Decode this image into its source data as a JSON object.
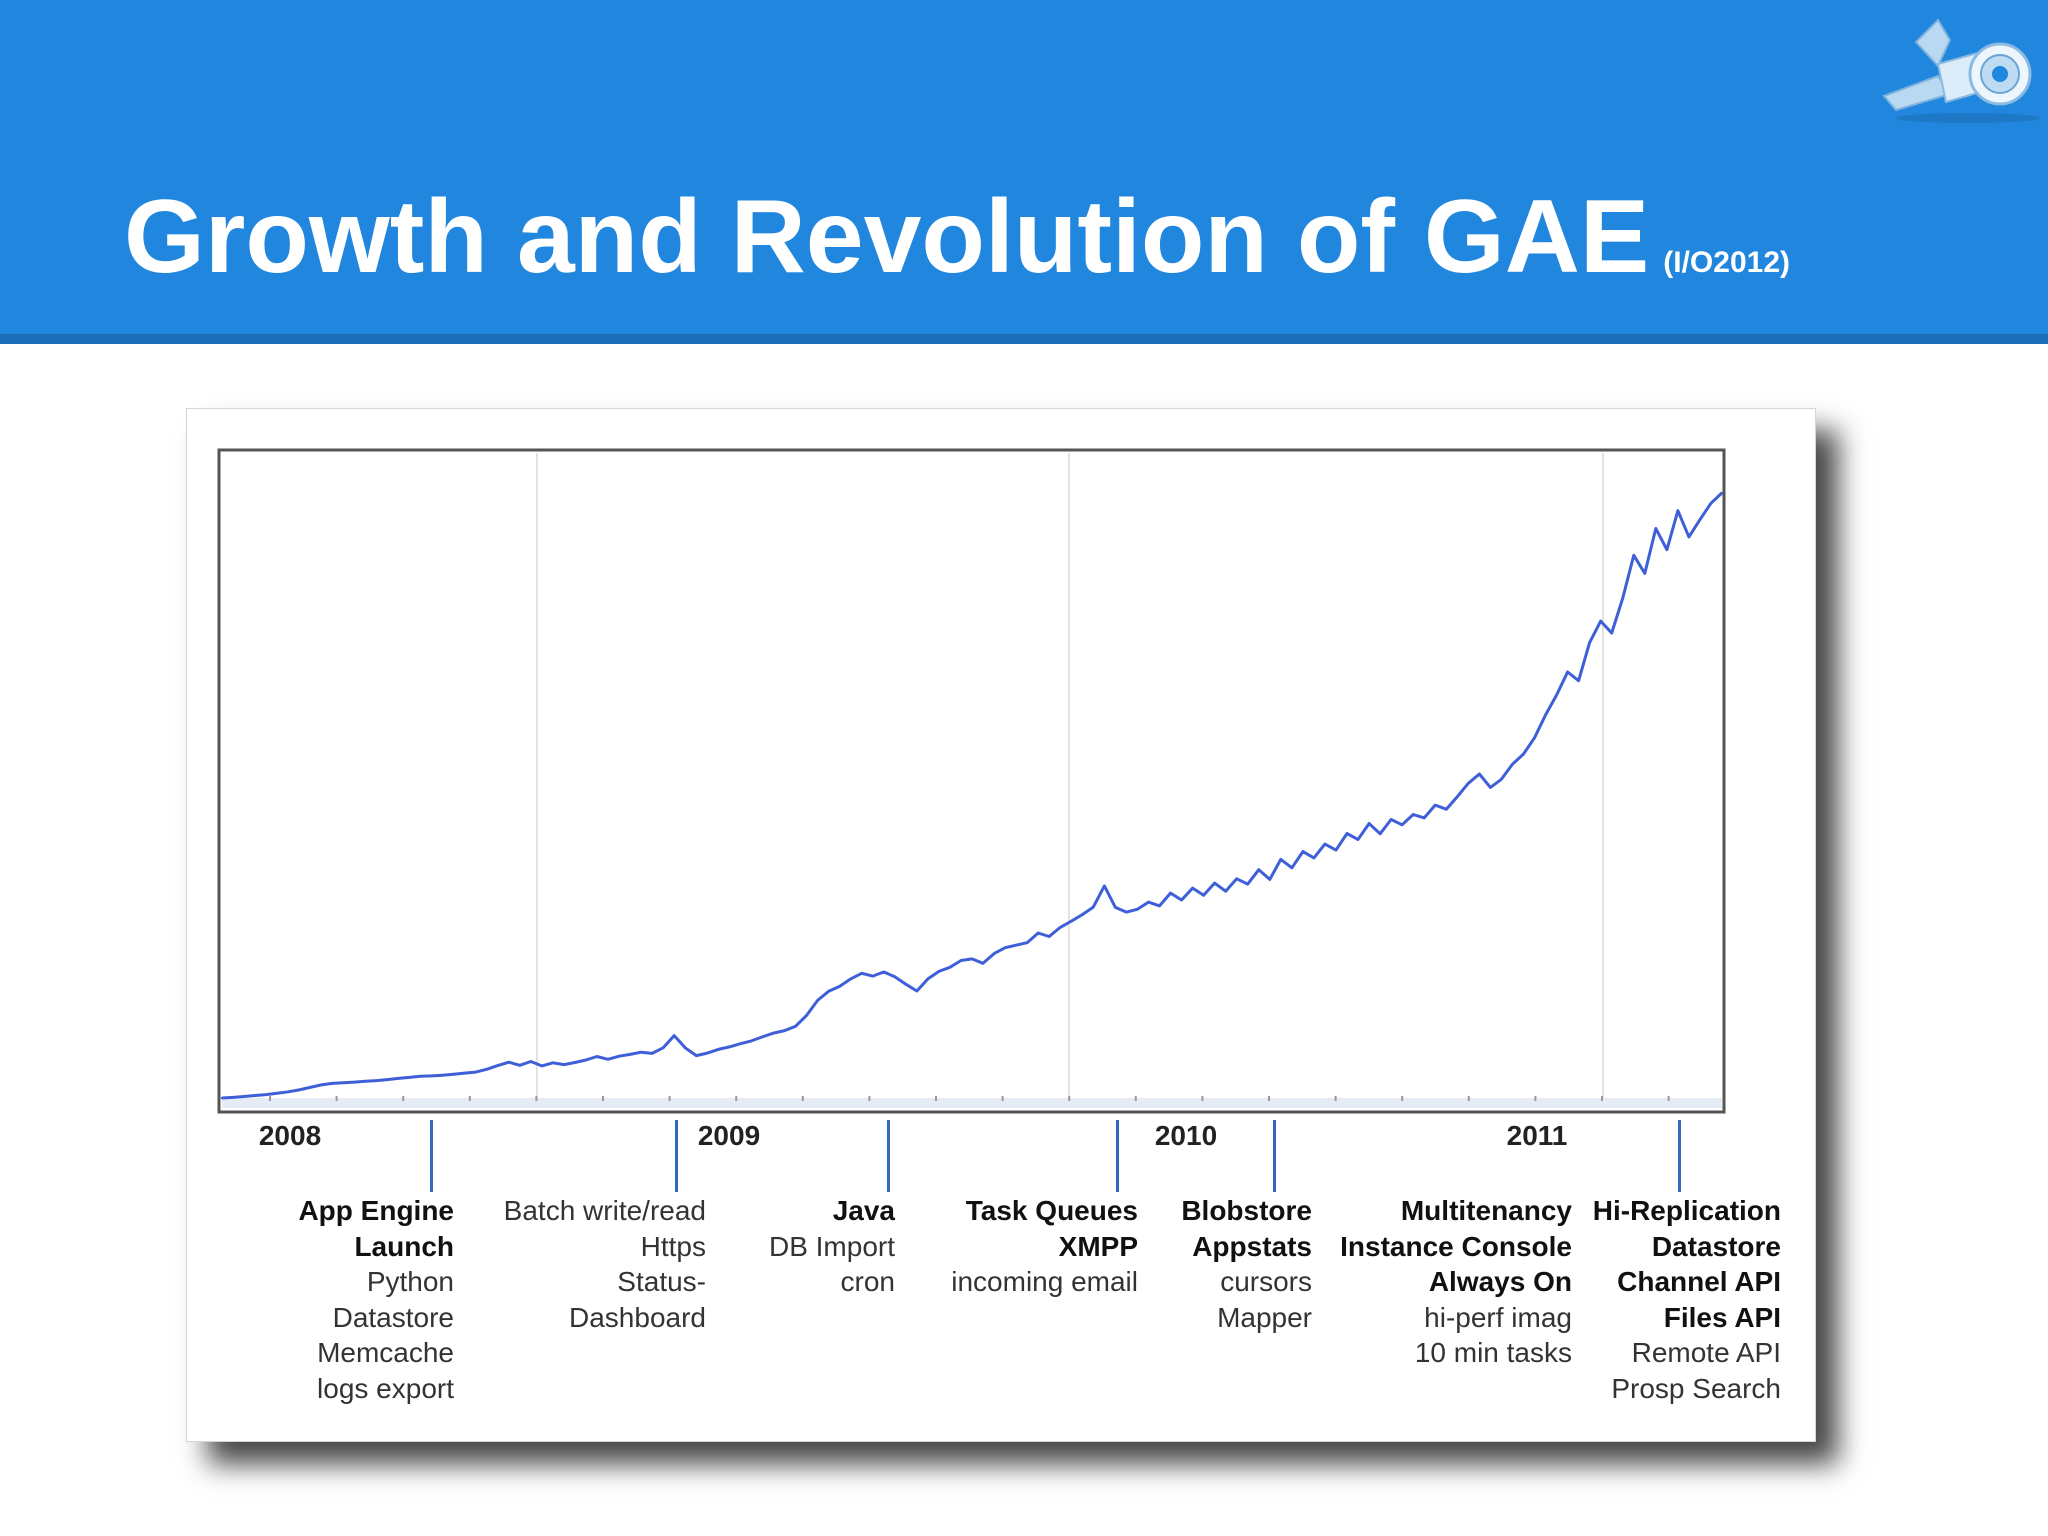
{
  "slide": {
    "title": "Growth and Revolution of GAE",
    "subtitle": "(I/O2012)",
    "logo_icon": "app-engine-logo-icon"
  },
  "colors": {
    "header": "#2186dd",
    "line": "#3f5fd8",
    "event_marker": "#2f6bb8"
  },
  "chart_data": {
    "type": "line",
    "title": "",
    "xlabel": "",
    "ylabel": "",
    "x_ticks": [
      "2008",
      "2009",
      "2010",
      "2011"
    ],
    "grid": true,
    "series": [
      {
        "name": "",
        "values": [
          3.2,
          3.4,
          3.7,
          4.0,
          4.3,
          4.7,
          5.2,
          5.8,
          6.6,
          7.4,
          7.9,
          8.1,
          8.3,
          8.6,
          8.8,
          9.1,
          9.5,
          9.8,
          10.2,
          10.3,
          10.5,
          10.8,
          11.2,
          11.5,
          12.4,
          13.6,
          14.7,
          13.7,
          14.9,
          13.5,
          14.5,
          13.9,
          14.6,
          15.4,
          16.5,
          15.6,
          16.6,
          17.2,
          17.9,
          17.5,
          19.3,
          23.2,
          19.3,
          16.8,
          17.6,
          18.8,
          19.6,
          20.6,
          21.5,
          22.8,
          24.0,
          24.8,
          26.2,
          29.7,
          34.5,
          37.4,
          39.0,
          41.4,
          43.2,
          42.3,
          43.6,
          42.1,
          39.7,
          37.5,
          41.4,
          43.8,
          45.1,
          47.3,
          47.8,
          46.4,
          49.5,
          51.4,
          52.2,
          53.0,
          56.1,
          55.0,
          57.9,
          59.9,
          62.0,
          64.4,
          71.2,
          64.3,
          62.8,
          63.7,
          66.0,
          64.8,
          68.9,
          66.7,
          70.5,
          68.2,
          72.1,
          69.5,
          73.5,
          71.8,
          76.4,
          73.3,
          79.7,
          77.0,
          82.2,
          80.2,
          84.6,
          82.7,
          88.0,
          86.1,
          91.2,
          87.9,
          92.5,
          90.8,
          94.1,
          93.0,
          97.1,
          95.8,
          99.8,
          104.1,
          107.1,
          102.8,
          105.4,
          110.2,
          113.5,
          118.7,
          126.0,
          132.4,
          139.8,
          137.0,
          149.2,
          156.1,
          152.3,
          163.4,
          177.2,
          171.4,
          185.8,
          179.0,
          191.5,
          183.1,
          188.6,
          193.9,
          197.2
        ]
      }
    ],
    "ylim": [
      0,
      210
    ]
  },
  "years": [
    "2008",
    "2009",
    "2010",
    "2011"
  ],
  "events": [
    {
      "lines": [
        "App Engine",
        "Launch",
        "Python",
        "Datastore",
        "Memcache",
        "logs export"
      ],
      "bold_count": 2
    },
    {
      "lines": [
        "Batch write/read",
        "Https",
        "Status-",
        "Dashboard"
      ],
      "bold_count": 0
    },
    {
      "lines": [
        "Java",
        "DB Import",
        "cron"
      ],
      "bold_count": 1
    },
    {
      "lines": [
        "Task Queues",
        "XMPP",
        "incoming email"
      ],
      "bold_count": 2
    },
    {
      "lines": [
        "Blobstore",
        "Appstats",
        "cursors",
        "Mapper"
      ],
      "bold_count": 2
    },
    {
      "lines": [
        "Multitenancy",
        "Instance Console",
        "Always On",
        "hi-perf imag",
        "10 min tasks"
      ],
      "bold_count": 3
    },
    {
      "lines": [
        "Hi-Replication",
        "Datastore",
        "Channel API",
        "Files API",
        "Remote API",
        "Prosp Search"
      ],
      "bold_count": 4
    }
  ]
}
